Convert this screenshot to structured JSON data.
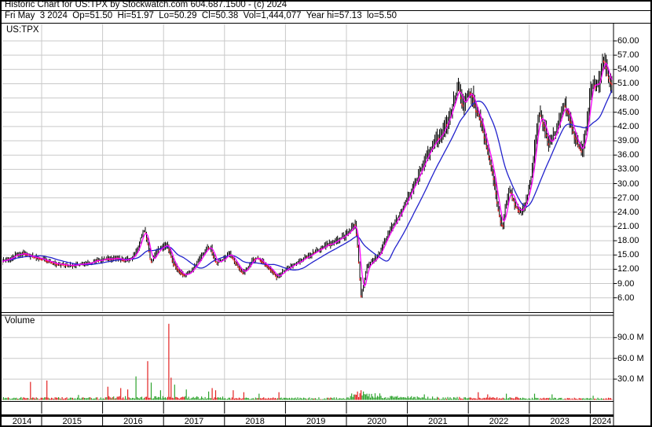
{
  "window": {
    "title_line": "Historic Chart for US:TPX by Stockwatch.com 604.687.1500 - (c) 2024",
    "quote_line": "Fri May  3 2024  Op=51.50  Hi=51.97  Lo=50.29  Cl=50.38  Vol=1,444,077  Year hi=57.13  lo=5.50"
  },
  "price_pane": {
    "symbol_label": "US:TPX"
  },
  "volume_pane": {
    "label": "Volume"
  },
  "x_axis": {
    "year_labels": [
      "2014",
      "2015",
      "2016",
      "2017",
      "2018",
      "2019",
      "2020",
      "2021",
      "2022",
      "2023",
      "2024"
    ]
  },
  "colors": {
    "candle": "#000000",
    "candle_accent": "#ee0000",
    "ma_fast": "#ff00ff",
    "ma_slow": "#2222cc",
    "volume_up": "#2ea32e",
    "volume_down": "#e32222",
    "grid": "#c9c9c9",
    "frame": "#000000",
    "background": "#ffffff"
  },
  "chart_data": [
    {
      "type": "candlestick",
      "title": "US:TPX",
      "x_unit": "decimal_year",
      "x_range": [
        2014.35,
        2024.37
      ],
      "ylim": [
        4.5,
        61.5
      ],
      "y_tick_step": 3,
      "y_tick_labels": [
        "60.00",
        "57.00",
        "54.00",
        "51.00",
        "48.00",
        "45.00",
        "42.00",
        "39.00",
        "36.00",
        "33.00",
        "30.00",
        "27.00",
        "24.00",
        "21.00",
        "18.00",
        "15.00",
        "12.00",
        "9.00",
        "6.00"
      ],
      "series": [
        {
          "name": "TPX daily price (close anchors read from chart)",
          "points": [
            [
              2014.35,
              13.6
            ],
            [
              2014.46,
              14.3
            ],
            [
              2014.58,
              15.0
            ],
            [
              2014.7,
              15.3
            ],
            [
              2014.84,
              14.7
            ],
            [
              2015.0,
              14.2
            ],
            [
              2015.12,
              13.6
            ],
            [
              2015.25,
              13.1
            ],
            [
              2015.4,
              12.9
            ],
            [
              2015.52,
              12.8
            ],
            [
              2015.65,
              13.1
            ],
            [
              2015.78,
              13.3
            ],
            [
              2015.9,
              13.8
            ],
            [
              2016.0,
              14.1
            ],
            [
              2016.12,
              14.3
            ],
            [
              2016.25,
              14.2
            ],
            [
              2016.35,
              13.9
            ],
            [
              2016.45,
              14.3
            ],
            [
              2016.52,
              15.0
            ],
            [
              2016.58,
              16.5
            ],
            [
              2016.63,
              18.8
            ],
            [
              2016.67,
              20.2
            ],
            [
              2016.71,
              19.2
            ],
            [
              2016.75,
              16.5
            ],
            [
              2016.79,
              13.4
            ],
            [
              2016.85,
              14.9
            ],
            [
              2016.92,
              16.1
            ],
            [
              2017.0,
              16.9
            ],
            [
              2017.06,
              17.1
            ],
            [
              2017.11,
              15.2
            ],
            [
              2017.16,
              13.2
            ],
            [
              2017.22,
              12.2
            ],
            [
              2017.29,
              11.0
            ],
            [
              2017.35,
              10.7
            ],
            [
              2017.42,
              11.3
            ],
            [
              2017.5,
              12.4
            ],
            [
              2017.57,
              13.6
            ],
            [
              2017.64,
              15.2
            ],
            [
              2017.71,
              16.4
            ],
            [
              2017.78,
              16.7
            ],
            [
              2017.83,
              14.0
            ],
            [
              2017.88,
              13.2
            ],
            [
              2017.94,
              13.9
            ],
            [
              2018.01,
              14.6
            ],
            [
              2018.08,
              15.4
            ],
            [
              2018.15,
              14.1
            ],
            [
              2018.22,
              12.5
            ],
            [
              2018.3,
              11.2
            ],
            [
              2018.38,
              12.4
            ],
            [
              2018.46,
              14.1
            ],
            [
              2018.54,
              14.3
            ],
            [
              2018.62,
              13.5
            ],
            [
              2018.7,
              12.6
            ],
            [
              2018.78,
              11.6
            ],
            [
              2018.85,
              10.3
            ],
            [
              2018.92,
              11.0
            ],
            [
              2019.0,
              11.9
            ],
            [
              2019.1,
              12.8
            ],
            [
              2019.22,
              13.6
            ],
            [
              2019.35,
              14.6
            ],
            [
              2019.5,
              15.8
            ],
            [
              2019.65,
              16.8
            ],
            [
              2019.8,
              17.6
            ],
            [
              2019.92,
              18.6
            ],
            [
              2020.04,
              19.6
            ],
            [
              2020.11,
              21.4
            ],
            [
              2020.15,
              21.0
            ],
            [
              2020.19,
              15.5
            ],
            [
              2020.24,
              6.2
            ],
            [
              2020.28,
              8.8
            ],
            [
              2020.33,
              12.5
            ],
            [
              2020.4,
              13.5
            ],
            [
              2020.48,
              14.2
            ],
            [
              2020.55,
              15.8
            ],
            [
              2020.65,
              18.5
            ],
            [
              2020.75,
              21.0
            ],
            [
              2020.85,
              23.0
            ],
            [
              2020.95,
              25.8
            ],
            [
              2021.05,
              28.2
            ],
            [
              2021.15,
              30.8
            ],
            [
              2021.25,
              33.8
            ],
            [
              2021.35,
              36.8
            ],
            [
              2021.45,
              38.8
            ],
            [
              2021.55,
              40.2
            ],
            [
              2021.65,
              42.8
            ],
            [
              2021.72,
              45.8
            ],
            [
              2021.79,
              48.8
            ],
            [
              2021.84,
              50.6
            ],
            [
              2021.9,
              46.2
            ],
            [
              2021.97,
              48.2
            ],
            [
              2022.04,
              49.3
            ],
            [
              2022.12,
              46.0
            ],
            [
              2022.22,
              42.0
            ],
            [
              2022.32,
              37.2
            ],
            [
              2022.42,
              30.5
            ],
            [
              2022.5,
              23.5
            ],
            [
              2022.56,
              20.5
            ],
            [
              2022.62,
              26.5
            ],
            [
              2022.68,
              28.5
            ],
            [
              2022.75,
              26.0
            ],
            [
              2022.82,
              24.3
            ],
            [
              2022.9,
              24.8
            ],
            [
              2022.97,
              27.5
            ],
            [
              2023.05,
              33.0
            ],
            [
              2023.12,
              41.0
            ],
            [
              2023.17,
              45.3
            ],
            [
              2023.25,
              41.5
            ],
            [
              2023.32,
              38.7
            ],
            [
              2023.42,
              40.8
            ],
            [
              2023.5,
              43.8
            ],
            [
              2023.58,
              46.6
            ],
            [
              2023.65,
              44.3
            ],
            [
              2023.72,
              40.8
            ],
            [
              2023.8,
              38.0
            ],
            [
              2023.86,
              36.7
            ],
            [
              2023.92,
              40.5
            ],
            [
              2023.96,
              44.5
            ],
            [
              2024.0,
              49.5
            ],
            [
              2024.05,
              51.3
            ],
            [
              2024.1,
              49.9
            ],
            [
              2024.15,
              52.0
            ],
            [
              2024.2,
              56.2
            ],
            [
              2024.24,
              55.0
            ],
            [
              2024.28,
              52.6
            ],
            [
              2024.32,
              51.2
            ],
            [
              2024.36,
              50.4
            ]
          ]
        },
        {
          "name": "fast moving average",
          "color": "#ff00ff",
          "derived": "sma_window_5"
        },
        {
          "name": "slow moving average",
          "color": "#2222cc",
          "derived": "sma_window_26"
        }
      ]
    },
    {
      "type": "bar",
      "title": "Volume",
      "unit": "millions of shares",
      "y_tick_labels": [
        "90.0 M",
        "60.0 M",
        "30.0 M"
      ],
      "baseline_range": [
        1,
        6
      ],
      "spikes": [
        [
          2014.81,
          26,
          "r"
        ],
        [
          2015.09,
          28,
          "r"
        ],
        [
          2015.6,
          7,
          "g"
        ],
        [
          2016.08,
          19,
          "r"
        ],
        [
          2016.3,
          17,
          "r"
        ],
        [
          2016.42,
          15,
          "r"
        ],
        [
          2016.55,
          34,
          "g"
        ],
        [
          2016.74,
          56,
          "r"
        ],
        [
          2016.79,
          25,
          "g"
        ],
        [
          2016.95,
          14,
          "g"
        ],
        [
          2017.09,
          110,
          "r"
        ],
        [
          2017.13,
          32,
          "r"
        ],
        [
          2017.18,
          22,
          "g"
        ],
        [
          2017.37,
          15,
          "g"
        ],
        [
          2017.73,
          12,
          "g"
        ],
        [
          2017.8,
          17,
          "r"
        ],
        [
          2017.85,
          14,
          "r"
        ],
        [
          2018.14,
          14,
          "r"
        ],
        [
          2018.31,
          11,
          "r"
        ],
        [
          2018.57,
          9,
          "g"
        ],
        [
          2018.9,
          11,
          "r"
        ],
        [
          2020.18,
          12,
          "r"
        ],
        [
          2020.23,
          14,
          "r"
        ],
        [
          2020.27,
          12,
          "g"
        ],
        [
          2020.34,
          9,
          "g"
        ],
        [
          2021.28,
          8,
          "g"
        ],
        [
          2022.16,
          11,
          "r"
        ],
        [
          2022.31,
          8,
          "r"
        ],
        [
          2022.62,
          9,
          "g"
        ],
        [
          2023.08,
          9,
          "g"
        ],
        [
          2023.38,
          8,
          "g"
        ],
        [
          2024.05,
          6,
          "g"
        ]
      ]
    }
  ]
}
